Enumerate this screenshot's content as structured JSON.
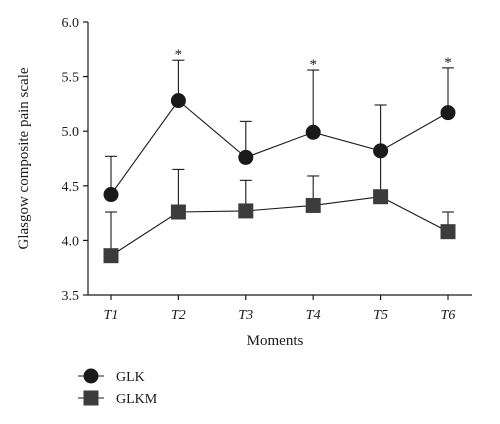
{
  "chart_data": {
    "type": "line",
    "xlabel": "Moments",
    "ylabel": "Glasgow composite pain scale",
    "ylim": [
      3.5,
      6.0
    ],
    "yticks": [
      "3.5",
      "4.0",
      "4.5",
      "5.0",
      "5.5",
      "6.0"
    ],
    "categories": [
      "T1",
      "T2",
      "T3",
      "T4",
      "T5",
      "T6"
    ],
    "series": [
      {
        "name": "GLK",
        "marker": "circle",
        "values": [
          4.42,
          5.28,
          4.76,
          4.99,
          4.82,
          5.17
        ],
        "error_upper": [
          4.77,
          5.65,
          5.09,
          5.56,
          5.24,
          5.58
        ]
      },
      {
        "name": "GLKM",
        "marker": "square",
        "values": [
          3.86,
          4.26,
          4.27,
          4.32,
          4.4,
          4.08
        ],
        "error_upper": [
          4.26,
          4.65,
          4.55,
          4.59,
          4.79,
          4.26
        ]
      }
    ],
    "significance": [
      {
        "category": "T2",
        "label": "*"
      },
      {
        "category": "T4",
        "label": "*"
      },
      {
        "category": "T6",
        "label": "*"
      }
    ],
    "grid": false,
    "legend": "bottom-left"
  },
  "colors": {
    "GLK": "#1a1a1a",
    "GLKM": "#3c3c3c",
    "axis": "#1a1a1a"
  }
}
